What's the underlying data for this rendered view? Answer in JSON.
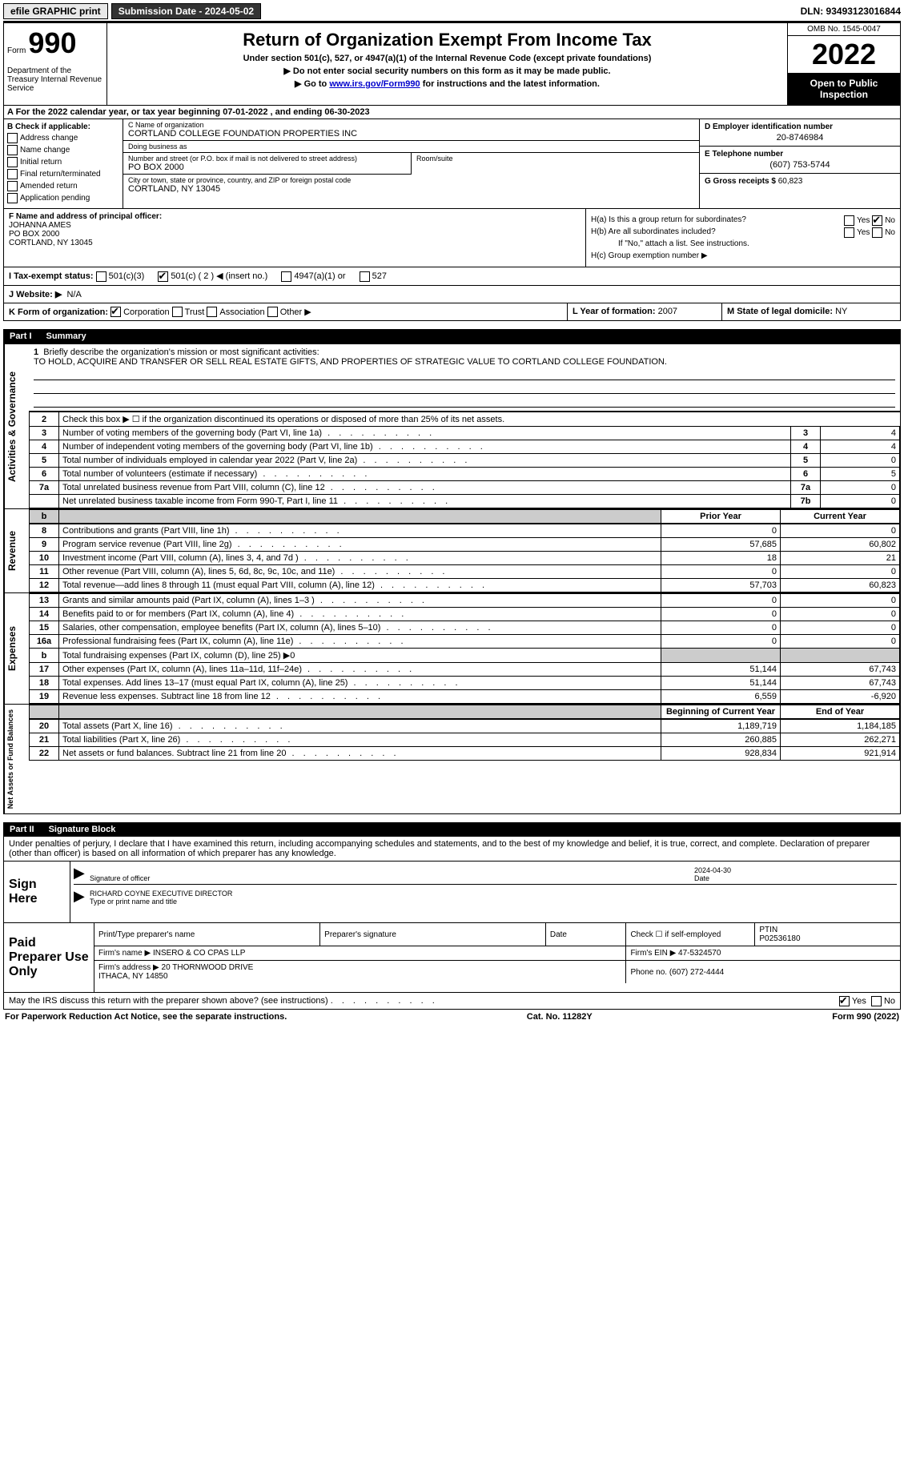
{
  "top_bar": {
    "efile": "efile GRAPHIC print",
    "submission_label": "Submission Date - 2024-05-02",
    "dln": "DLN: 93493123016844"
  },
  "header": {
    "form_label": "Form",
    "form_number": "990",
    "dept": "Department of the Treasury\nInternal Revenue Service",
    "title": "Return of Organization Exempt From Income Tax",
    "subtitle": "Under section 501(c), 527, or 4947(a)(1) of the Internal Revenue Code (except private foundations)",
    "line1": "▶ Do not enter social security numbers on this form as it may be made public.",
    "line2_pre": "▶ Go to ",
    "line2_link": "www.irs.gov/Form990",
    "line2_post": " for instructions and the latest information.",
    "omb": "OMB No. 1545-0047",
    "year": "2022",
    "open_pub": "Open to Public Inspection"
  },
  "row_A": {
    "text": "A For the 2022 calendar year, or tax year beginning 07-01-2022    , and ending 06-30-2023"
  },
  "col_B": {
    "label": "B Check if applicable:",
    "items": [
      "Address change",
      "Name change",
      "Initial return",
      "Final return/terminated",
      "Amended return",
      "Application pending"
    ]
  },
  "col_C": {
    "name_label": "C Name of organization",
    "name": "CORTLAND COLLEGE FOUNDATION PROPERTIES INC",
    "dba_label": "Doing business as",
    "dba": "",
    "street_label": "Number and street (or P.O. box if mail is not delivered to street address)",
    "street": "PO BOX 2000",
    "room_label": "Room/suite",
    "city_label": "City or town, state or province, country, and ZIP or foreign postal code",
    "city": "CORTLAND, NY  13045"
  },
  "col_D": {
    "ein_label": "D Employer identification number",
    "ein": "20-8746984",
    "phone_label": "E Telephone number",
    "phone": "(607) 753-5744",
    "gross_label": "G Gross receipts $",
    "gross": "60,823"
  },
  "col_F": {
    "label": "F Name and address of principal officer:",
    "name": "JOHANNA AMES",
    "addr1": "PO BOX 2000",
    "addr2": "CORTLAND, NY  13045"
  },
  "col_H": {
    "ha_label": "H(a)  Is this a group return for subordinates?",
    "ha_no_checked": true,
    "hb_label": "H(b)  Are all subordinates included?",
    "hb_note": "If \"No,\" attach a list. See instructions.",
    "hc_label": "H(c)  Group exemption number ▶"
  },
  "row_I": {
    "label": "I  Tax-exempt status:",
    "opts": [
      "501(c)(3)",
      "501(c) ( 2 ) ◀ (insert no.)",
      "4947(a)(1) or",
      "527"
    ],
    "checked_index": 1
  },
  "row_J": {
    "label": "J  Website: ▶",
    "val": "N/A"
  },
  "row_K": {
    "c1_label": "K Form of organization:",
    "opts": [
      "Corporation",
      "Trust",
      "Association",
      "Other ▶"
    ],
    "checked_index": 0,
    "c2_label": "L Year of formation:",
    "c2_val": "2007",
    "c3_label": "M State of legal domicile:",
    "c3_val": "NY"
  },
  "part1": {
    "num": "Part I",
    "title": "Summary"
  },
  "mission": {
    "num": "1",
    "label": "Briefly describe the organization's mission or most significant activities:",
    "text": "TO HOLD, ACQUIRE AND TRANSFER OR SELL REAL ESTATE GIFTS, AND PROPERTIES OF STRATEGIC VALUE TO CORTLAND COLLEGE FOUNDATION."
  },
  "gov_rows": [
    {
      "n": "2",
      "t": "Check this box ▶ ☐ if the organization discontinued its operations or disposed of more than 25% of its net assets.",
      "box": "",
      "v": ""
    },
    {
      "n": "3",
      "t": "Number of voting members of the governing body (Part VI, line 1a)",
      "box": "3",
      "v": "4"
    },
    {
      "n": "4",
      "t": "Number of independent voting members of the governing body (Part VI, line 1b)",
      "box": "4",
      "v": "4"
    },
    {
      "n": "5",
      "t": "Total number of individuals employed in calendar year 2022 (Part V, line 2a)",
      "box": "5",
      "v": "0"
    },
    {
      "n": "6",
      "t": "Total number of volunteers (estimate if necessary)",
      "box": "6",
      "v": "5"
    },
    {
      "n": "7a",
      "t": "Total unrelated business revenue from Part VIII, column (C), line 12",
      "box": "7a",
      "v": "0"
    },
    {
      "n": "",
      "t": "Net unrelated business taxable income from Form 990-T, Part I, line 11",
      "box": "7b",
      "v": "0"
    }
  ],
  "two_col_header": {
    "prior": "Prior Year",
    "current": "Current Year"
  },
  "revenue_rows": [
    {
      "n": "8",
      "t": "Contributions and grants (Part VIII, line 1h)",
      "p": "0",
      "c": "0"
    },
    {
      "n": "9",
      "t": "Program service revenue (Part VIII, line 2g)",
      "p": "57,685",
      "c": "60,802"
    },
    {
      "n": "10",
      "t": "Investment income (Part VIII, column (A), lines 3, 4, and 7d )",
      "p": "18",
      "c": "21"
    },
    {
      "n": "11",
      "t": "Other revenue (Part VIII, column (A), lines 5, 6d, 8c, 9c, 10c, and 11e)",
      "p": "0",
      "c": "0"
    },
    {
      "n": "12",
      "t": "Total revenue—add lines 8 through 11 (must equal Part VIII, column (A), line 12)",
      "p": "57,703",
      "c": "60,823"
    }
  ],
  "expense_rows": [
    {
      "n": "13",
      "t": "Grants and similar amounts paid (Part IX, column (A), lines 1–3 )",
      "p": "0",
      "c": "0"
    },
    {
      "n": "14",
      "t": "Benefits paid to or for members (Part IX, column (A), line 4)",
      "p": "0",
      "c": "0"
    },
    {
      "n": "15",
      "t": "Salaries, other compensation, employee benefits (Part IX, column (A), lines 5–10)",
      "p": "0",
      "c": "0"
    },
    {
      "n": "16a",
      "t": "Professional fundraising fees (Part IX, column (A), line 11e)",
      "p": "0",
      "c": "0"
    },
    {
      "n": "b",
      "t": "Total fundraising expenses (Part IX, column (D), line 25) ▶0",
      "p": "SHADE",
      "c": "SHADE"
    },
    {
      "n": "17",
      "t": "Other expenses (Part IX, column (A), lines 11a–11d, 11f–24e)",
      "p": "51,144",
      "c": "67,743"
    },
    {
      "n": "18",
      "t": "Total expenses. Add lines 13–17 (must equal Part IX, column (A), line 25)",
      "p": "51,144",
      "c": "67,743"
    },
    {
      "n": "19",
      "t": "Revenue less expenses. Subtract line 18 from line 12",
      "p": "6,559",
      "c": "-6,920"
    }
  ],
  "net_header": {
    "begin": "Beginning of Current Year",
    "end": "End of Year"
  },
  "net_rows": [
    {
      "n": "20",
      "t": "Total assets (Part X, line 16)",
      "p": "1,189,719",
      "c": "1,184,185"
    },
    {
      "n": "21",
      "t": "Total liabilities (Part X, line 26)",
      "p": "260,885",
      "c": "262,271"
    },
    {
      "n": "22",
      "t": "Net assets or fund balances. Subtract line 21 from line 20",
      "p": "928,834",
      "c": "921,914"
    }
  ],
  "side_labels": {
    "gov": "Activities & Governance",
    "rev": "Revenue",
    "exp": "Expenses",
    "net": "Net Assets or Fund Balances"
  },
  "part2": {
    "num": "Part II",
    "title": "Signature Block"
  },
  "penalty": "Under penalties of perjury, I declare that I have examined this return, including accompanying schedules and statements, and to the best of my knowledge and belief, it is true, correct, and complete. Declaration of preparer (other than officer) is based on all information of which preparer has any knowledge.",
  "sign": {
    "here": "Sign Here",
    "sig_label": "Signature of officer",
    "date_label": "Date",
    "date": "2024-04-30",
    "name": "RICHARD COYNE  EXECUTIVE DIRECTOR",
    "name_label": "Type or print name and title"
  },
  "paid": {
    "label": "Paid Preparer Use Only",
    "h": [
      "Print/Type preparer's name",
      "Preparer's signature",
      "Date",
      "Check ☐ if self-employed",
      "PTIN"
    ],
    "ptin": "P02536180",
    "firm_name_label": "Firm's name    ▶",
    "firm_name": "INSERO & CO CPAS LLP",
    "firm_ein_label": "Firm's EIN ▶",
    "firm_ein": "47-5324570",
    "firm_addr_label": "Firm's address ▶",
    "firm_addr": "20 THORNWOOD DRIVE\nITHACA, NY  14850",
    "phone_label": "Phone no.",
    "phone": "(607) 272-4444"
  },
  "discuss": {
    "text": "May the IRS discuss this return with the preparer shown above? (see instructions)",
    "yes_checked": true
  },
  "footer": {
    "left": "For Paperwork Reduction Act Notice, see the separate instructions.",
    "mid": "Cat. No. 11282Y",
    "right": "Form 990 (2022)"
  }
}
